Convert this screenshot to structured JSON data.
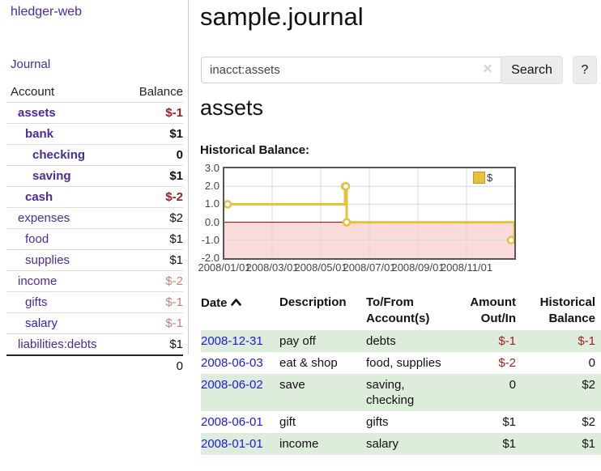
{
  "app": {
    "title": "hledger-web",
    "nav": {
      "journal": "Journal"
    }
  },
  "sidebar": {
    "headers": {
      "account": "Account",
      "balance": "Balance"
    },
    "rows": [
      {
        "label": "assets",
        "depth": 1,
        "bold": true,
        "amount": "$-1",
        "tone": "neg-strong"
      },
      {
        "label": "bank",
        "depth": 2,
        "bold": true,
        "amount": "$1",
        "tone": "plain"
      },
      {
        "label": "checking",
        "depth": 3,
        "bold": true,
        "amount": "0",
        "tone": "plain"
      },
      {
        "label": "saving",
        "depth": 3,
        "bold": true,
        "amount": "$1",
        "tone": "plain"
      },
      {
        "label": "cash",
        "depth": 2,
        "bold": true,
        "amount": "$-2",
        "tone": "neg-strong"
      },
      {
        "label": "expenses",
        "depth": 1,
        "bold": false,
        "amount": "$2",
        "tone": "plain"
      },
      {
        "label": "food",
        "depth": 2,
        "bold": false,
        "amount": "$1",
        "tone": "plain"
      },
      {
        "label": "supplies",
        "depth": 2,
        "bold": false,
        "amount": "$1",
        "tone": "plain"
      },
      {
        "label": "income",
        "depth": 1,
        "bold": false,
        "amount": "$-2",
        "tone": "neg-muted"
      },
      {
        "label": "gifts",
        "depth": 2,
        "bold": false,
        "amount": "$-1",
        "tone": "neg-muted"
      },
      {
        "label": "salary",
        "depth": 2,
        "bold": false,
        "amount": "$-1",
        "tone": "neg-muted",
        "link_blue": true
      },
      {
        "label": "liabilities:debts",
        "depth": 1,
        "bold": false,
        "amount": "$1",
        "tone": "plain"
      }
    ],
    "total": "0"
  },
  "main": {
    "title": "sample.journal",
    "search": {
      "value": "inacct:assets",
      "clear_icon": "×",
      "search_button": "Search",
      "help_button": "?"
    },
    "account_heading": "assets",
    "section_label": "Historical Balance:"
  },
  "chart_data": {
    "type": "line",
    "step": true,
    "title": "Historical Balance of assets",
    "series": [
      {
        "name": "$",
        "color": "#e6c13f",
        "points": [
          [
            "2008/01/01",
            1
          ],
          [
            "2008/06/01",
            2
          ],
          [
            "2008/06/02",
            2
          ],
          [
            "2008/06/03",
            0
          ],
          [
            "2008/12/31",
            -1
          ]
        ]
      }
    ],
    "ylim": [
      -2,
      3
    ],
    "yticks": [
      "3.0",
      "2.0",
      "1.0",
      "0.0",
      "-1.0",
      "-2.0"
    ],
    "ytick_values": [
      3,
      2,
      1,
      0,
      -1,
      -2
    ],
    "xticks": [
      "2008/01/01",
      "2008/03/01",
      "2008/05/01",
      "2008/07/01",
      "2008/09/01",
      "2008/11/01"
    ],
    "grid": true,
    "legend_position": "top-right",
    "legend_label": "$",
    "negative_region_color": "#fbdada",
    "zero_line_color": "#8b0000",
    "grid_color": "#d8d8d8"
  },
  "register": {
    "headers": {
      "date": "Date",
      "sort_icon": "chevron-up",
      "description": "Description",
      "accounts": "To/From Account(s)",
      "amount": "Amount Out/In",
      "balance": "Historical Balance"
    },
    "rows": [
      {
        "date": "2008-12-31",
        "description": "pay off",
        "accounts": "debts",
        "amount": "$-1",
        "balance": "$-1"
      },
      {
        "date": "2008-06-03",
        "description": "eat & shop",
        "accounts": "food, supplies",
        "amount": "$-2",
        "balance": "0"
      },
      {
        "date": "2008-06-02",
        "description": "save",
        "accounts": "saving, checking",
        "amount": "0",
        "balance": "$2"
      },
      {
        "date": "2008-06-01",
        "description": "gift",
        "accounts": "gifts",
        "amount": "$1",
        "balance": "$2"
      },
      {
        "date": "2008-01-01",
        "description": "income",
        "accounts": "salary",
        "amount": "$1",
        "balance": "$1"
      }
    ]
  },
  "colors": {
    "link_purple": "#4b2a9b",
    "link_blue": "#1b1bdb",
    "negative_strong": "#9e1f1f",
    "negative_muted": "#c28181",
    "row_green": "#deecdc",
    "chart_line": "#e6c13f"
  }
}
